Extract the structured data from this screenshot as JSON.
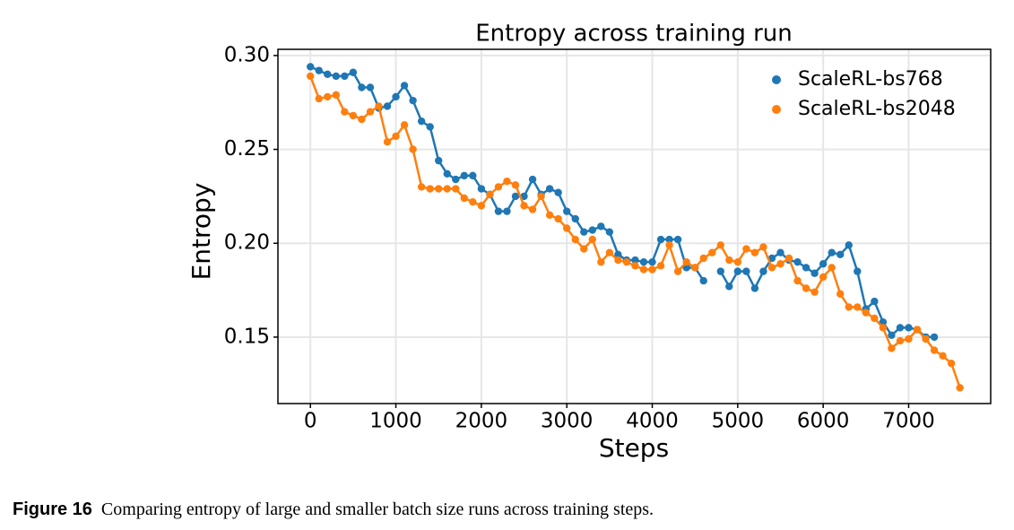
{
  "chart_data": {
    "type": "line",
    "title": "Entropy across training run",
    "x_label": "Steps",
    "y_label": "Entropy",
    "x": [
      0,
      100,
      200,
      300,
      400,
      500,
      600,
      700,
      800,
      900,
      1000,
      1100,
      1200,
      1300,
      1400,
      1500,
      1600,
      1700,
      1800,
      1900,
      2000,
      2100,
      2200,
      2300,
      2400,
      2500,
      2600,
      2700,
      2800,
      2900,
      3000,
      3100,
      3200,
      3300,
      3400,
      3500,
      3600,
      3700,
      3800,
      3900,
      4000,
      4100,
      4200,
      4300,
      4400,
      4500,
      4600,
      4700,
      4800,
      4900,
      5000,
      5100,
      5200,
      5300,
      5400,
      5500,
      5600,
      5700,
      5800,
      5900,
      6000,
      6100,
      6200,
      6300,
      6400,
      6500,
      6600,
      6700,
      6800,
      6900,
      7000,
      7100,
      7200,
      7300,
      7400,
      7500,
      7600
    ],
    "series": [
      {
        "name": "ScaleRL-bs768",
        "color": "#1f77b4",
        "values": [
          0.294,
          0.292,
          0.29,
          0.289,
          0.289,
          0.291,
          0.283,
          0.283,
          0.272,
          0.273,
          0.278,
          0.284,
          0.276,
          0.265,
          0.262,
          0.244,
          0.237,
          0.234,
          0.236,
          0.236,
          0.229,
          0.226,
          0.217,
          0.217,
          0.225,
          0.225,
          0.234,
          0.226,
          0.229,
          0.227,
          0.217,
          0.213,
          0.206,
          0.207,
          0.209,
          0.206,
          0.194,
          0.191,
          0.191,
          0.19,
          0.19,
          0.202,
          0.202,
          0.202,
          0.187,
          0.187,
          0.18,
          null,
          0.185,
          0.177,
          0.185,
          0.185,
          0.176,
          0.185,
          0.192,
          0.195,
          0.191,
          0.19,
          0.187,
          0.184,
          0.189,
          0.195,
          0.194,
          0.199,
          0.185,
          0.165,
          0.169,
          0.158,
          0.151,
          0.155,
          0.155,
          0.154,
          0.15,
          0.15,
          null,
          null,
          null
        ]
      },
      {
        "name": "ScaleRL-bs2048",
        "color": "#ff7f0e",
        "values": [
          0.289,
          0.277,
          0.278,
          0.279,
          0.27,
          0.268,
          0.266,
          0.27,
          0.273,
          0.254,
          0.257,
          0.263,
          0.25,
          0.23,
          0.229,
          0.229,
          0.229,
          0.229,
          0.224,
          0.222,
          0.22,
          0.226,
          0.23,
          0.233,
          0.231,
          0.22,
          0.218,
          0.225,
          0.215,
          0.213,
          0.208,
          0.202,
          0.197,
          0.202,
          0.19,
          0.195,
          0.191,
          0.19,
          0.188,
          0.186,
          0.186,
          0.188,
          0.199,
          0.185,
          0.19,
          0.187,
          0.192,
          0.195,
          0.199,
          0.191,
          0.19,
          0.197,
          0.195,
          0.198,
          0.187,
          0.189,
          0.192,
          0.18,
          0.176,
          0.174,
          0.182,
          0.187,
          0.173,
          0.166,
          0.166,
          0.163,
          0.16,
          0.155,
          0.144,
          0.148,
          0.149,
          0.154,
          0.149,
          0.143,
          0.14,
          0.136,
          0.123
        ]
      }
    ],
    "xlim": [
      -380,
      7960
    ],
    "ylim": [
      0.1146,
      0.3033
    ],
    "xticks": [
      0,
      1000,
      2000,
      3000,
      4000,
      5000,
      6000,
      7000
    ],
    "yticks": [
      0.15,
      {
        "value": 0.2,
        "label": "0.20"
      },
      0.25,
      {
        "value": 0.3,
        "label": "0.30"
      }
    ],
    "grid": true,
    "legend": "upper right"
  },
  "caption": {
    "label": "Figure 16",
    "text": "Comparing entropy of large and smaller batch size runs across training steps."
  }
}
